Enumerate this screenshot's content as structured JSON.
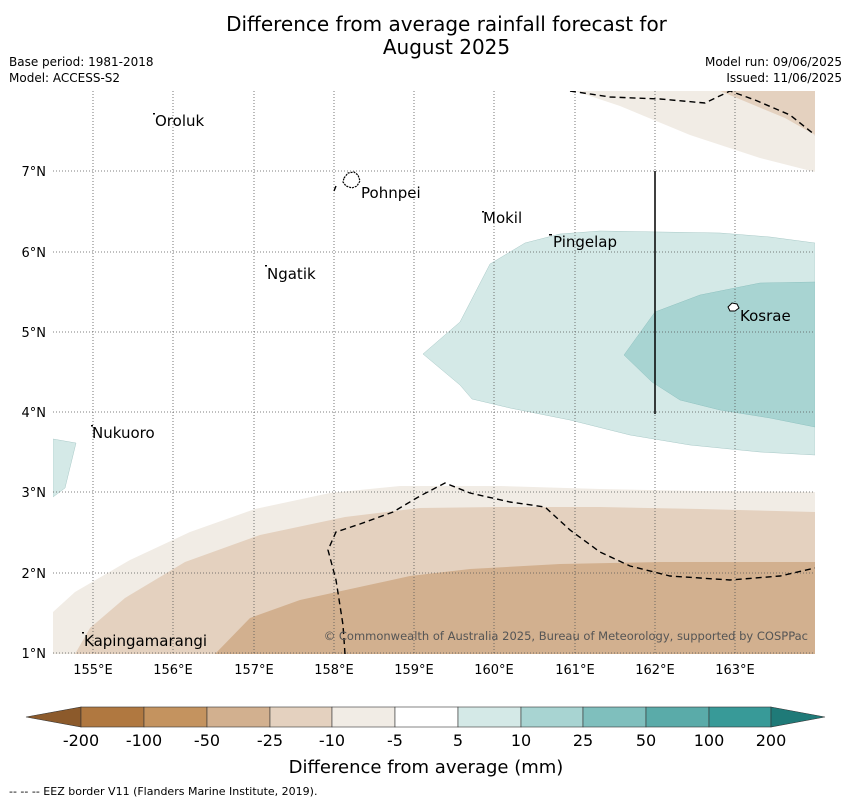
{
  "title_line1": "Difference from average rainfall forecast for",
  "title_line2": "August 2025",
  "base_period": "Base period: 1981-2018",
  "model": "Model: ACCESS-S2",
  "model_run": "Model run: 09/06/2025",
  "issued": "Issued: 11/06/2025",
  "lon_labels": [
    "155°E",
    "156°E",
    "157°E",
    "158°E",
    "159°E",
    "160°E",
    "161°E",
    "162°E",
    "163°E"
  ],
  "lat_labels": [
    "1°N",
    "2°N",
    "3°N",
    "4°N",
    "5°N",
    "6°N",
    "7°N"
  ],
  "places": [
    "Oroluk",
    "Pohnpei",
    "Mokil",
    "Pingelap",
    "Ngatik",
    "Kosrae",
    "Nukuoro",
    "Kapingamarangi"
  ],
  "copyright": "© Commonwealth of Australia 2025, Bureau of Meteorology, supported by COSPPac",
  "colorbar": {
    "ticks": [
      "-200",
      "-100",
      "-50",
      "-25",
      "-10",
      "-5",
      "5",
      "10",
      "25",
      "50",
      "100",
      "200"
    ],
    "colors": [
      "#8c5a2b",
      "#b07840",
      "#c4935f",
      "#d2b08f",
      "#e4d1bf",
      "#f1ece5",
      "#ffffff",
      "#d4e9e7",
      "#a8d4d2",
      "#7fbfbd",
      "#5aaba9",
      "#389a98",
      "#1f7a78"
    ],
    "label": "Difference from average (mm)"
  },
  "footer": "--  --  -- EEZ border V11 (Flanders Marine Institute, 2019)."
}
